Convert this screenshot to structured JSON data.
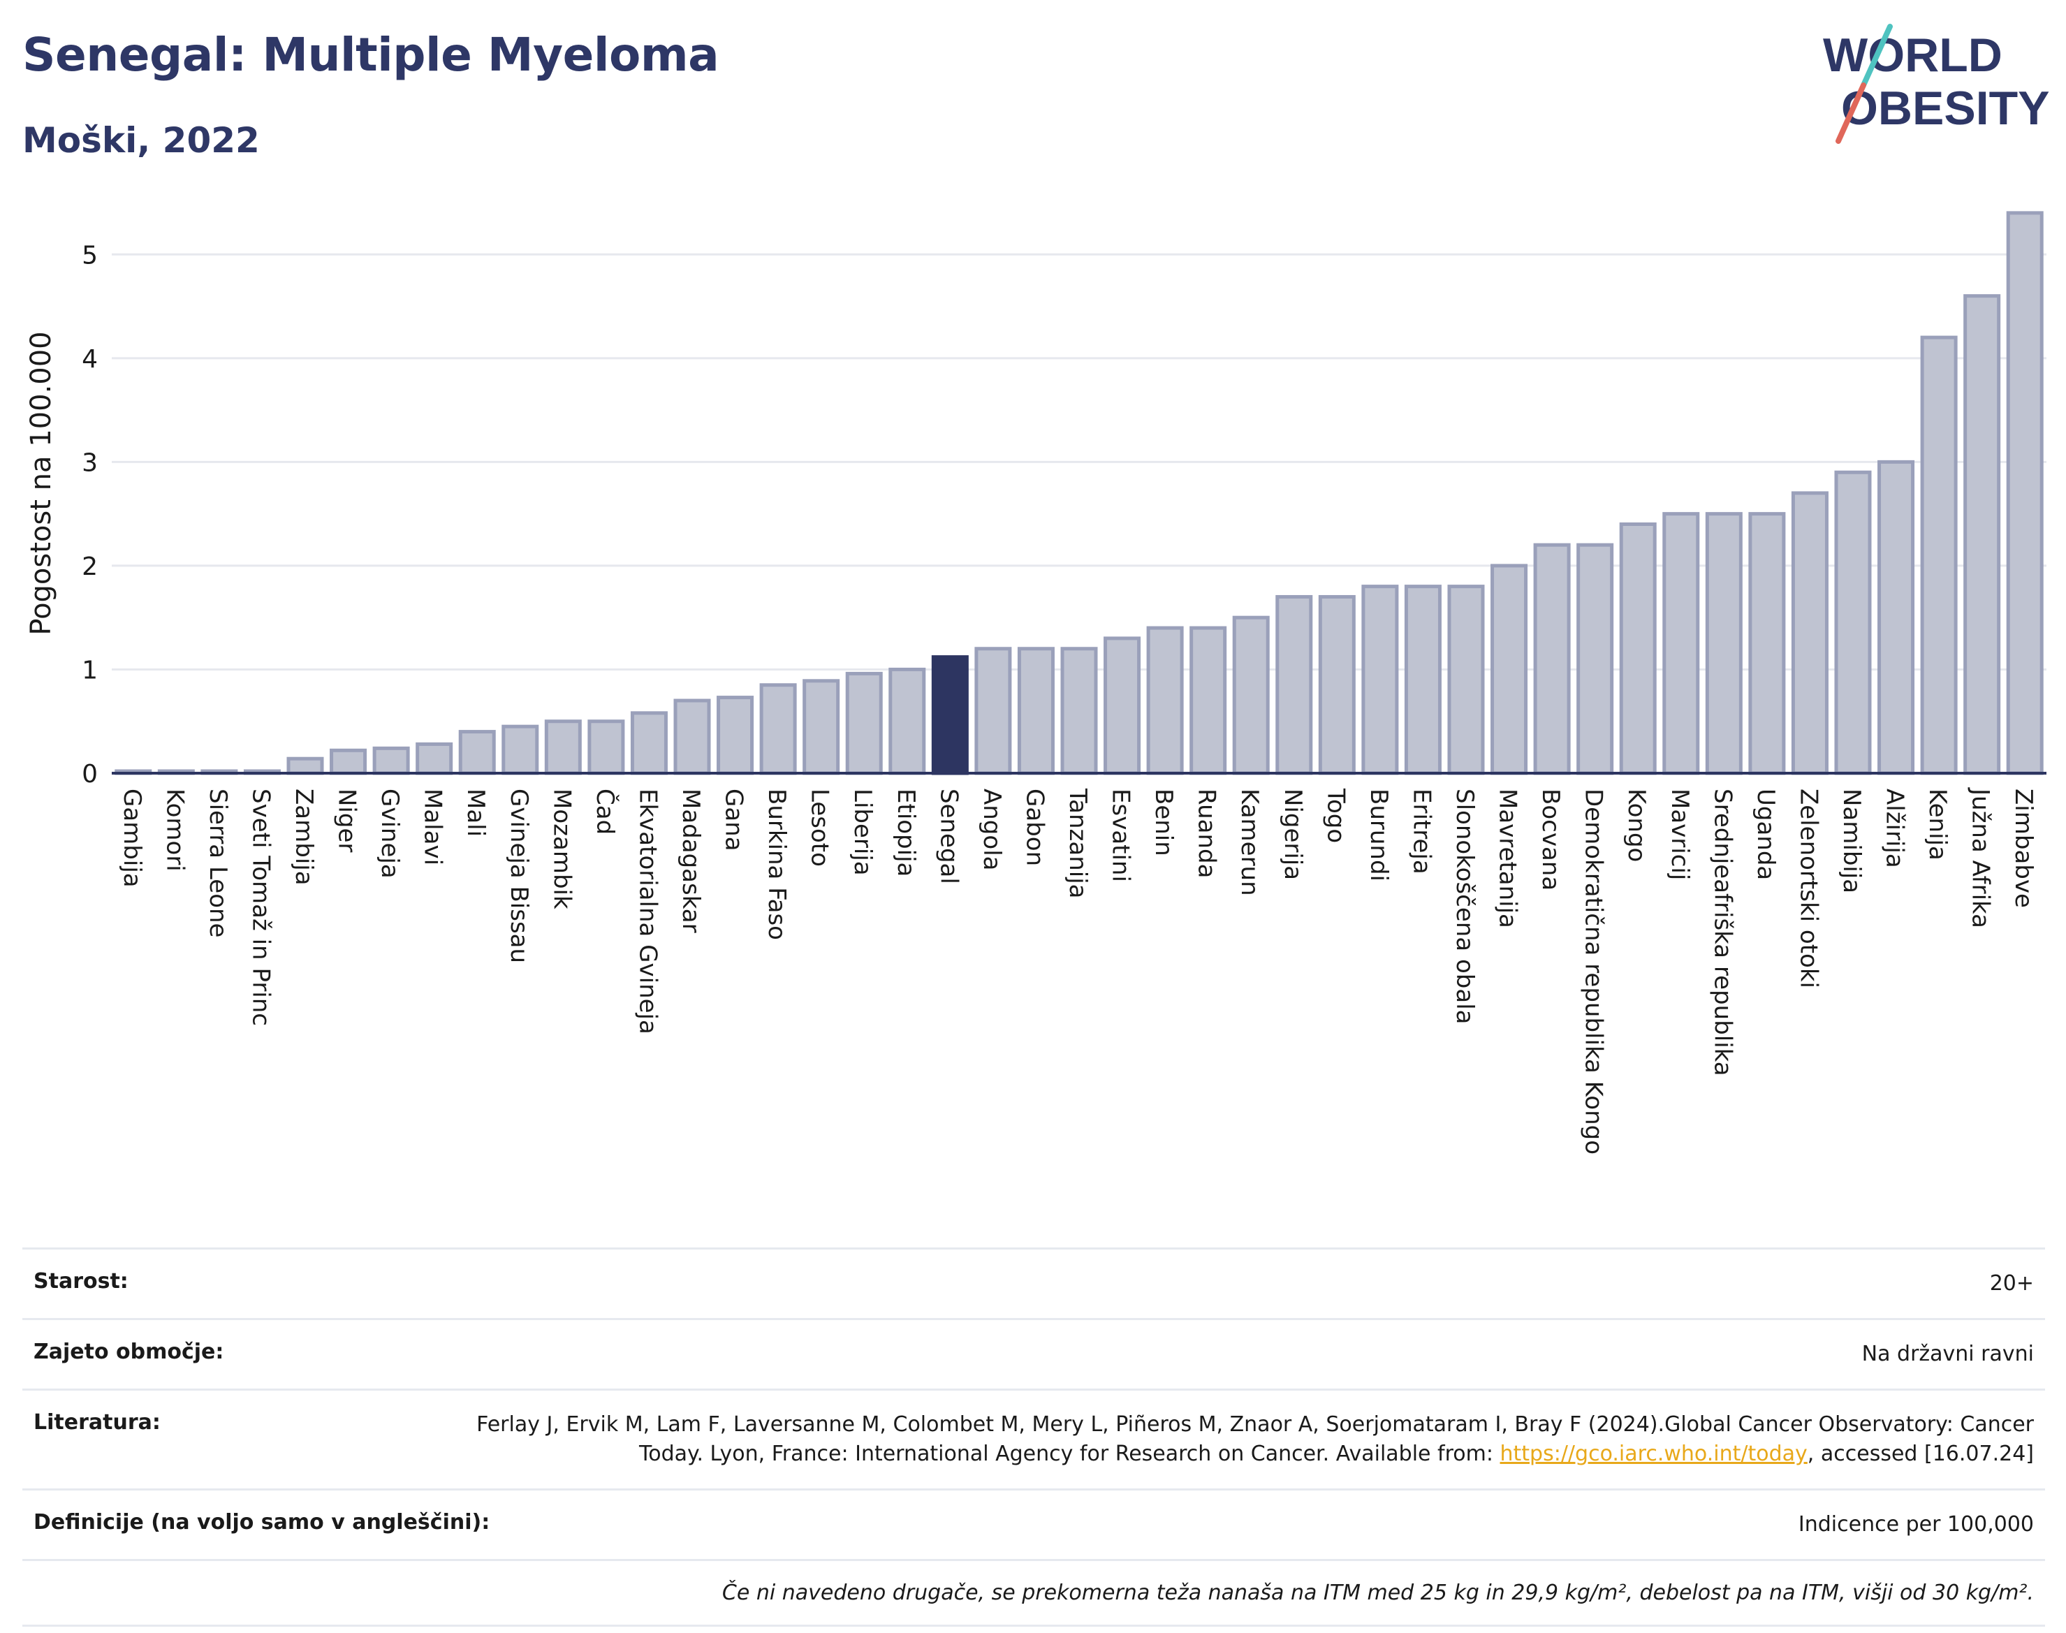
{
  "header": {
    "title": "Senegal: Multiple Myeloma",
    "subtitle": "Moški, 2022"
  },
  "logo": {
    "line1": "W",
    "line1_rest": "RLD",
    "line2": "BESITY",
    "brand_color": "#2e3766",
    "slash_colors": [
      "#4fc3c0",
      "#e0675a"
    ]
  },
  "chart_data": {
    "type": "bar",
    "ylabel": "Pogostost na 100.000",
    "xlabel": "",
    "ylim": [
      0,
      5.5
    ],
    "yticks": [
      0,
      1,
      2,
      3,
      4,
      5
    ],
    "grid": true,
    "highlight_category": "Senegal",
    "colors": {
      "bar": "#bfc3d1",
      "bar_edge": "#9aa0ba",
      "highlight": "#2d3561",
      "grid": "#e6e8ee",
      "axis": "#2d3561"
    },
    "categories": [
      "Gambija",
      "Komori",
      "Sierra Leone",
      "Sveti Tomaž in Princ",
      "Zambija",
      "Niger",
      "Gvineja",
      "Malavi",
      "Mali",
      "Gvineja Bissau",
      "Mozambik",
      "Čad",
      "Ekvatorialna Gvineja",
      "Madagaskar",
      "Gana",
      "Burkina Faso",
      "Lesoto",
      "Liberija",
      "Etiopija",
      "Senegal",
      "Angola",
      "Gabon",
      "Tanzanija",
      "Esvatini",
      "Benin",
      "Ruanda",
      "Kamerun",
      "Nigerija",
      "Togo",
      "Burundi",
      "Eritreja",
      "Slonokoščena obala",
      "Mavretanija",
      "Bocvana",
      "Demokratična republika Kongo",
      "Kongo",
      "Mavricij",
      "Srednjeafriška republika",
      "Uganda",
      "Zelenortski otoki",
      "Namibija",
      "Alžirija",
      "Kenija",
      "Južna Afrika",
      "Zimbabve"
    ],
    "values": [
      0.02,
      0.02,
      0.02,
      0.02,
      0.14,
      0.22,
      0.24,
      0.28,
      0.4,
      0.45,
      0.5,
      0.5,
      0.58,
      0.7,
      0.73,
      0.85,
      0.89,
      0.96,
      1.0,
      1.12,
      1.2,
      1.2,
      1.2,
      1.3,
      1.4,
      1.4,
      1.5,
      1.7,
      1.7,
      1.8,
      1.8,
      1.8,
      2.0,
      2.2,
      2.2,
      2.4,
      2.5,
      2.5,
      2.5,
      2.7,
      2.9,
      3.0,
      4.2,
      4.6,
      5.4
    ]
  },
  "info": {
    "age_label": "Starost:",
    "age_value": "20+",
    "coverage_label": "Zajeto območje:",
    "coverage_value": "Na državni ravni",
    "reference_label": "Literatura:",
    "reference_text_1": "Ferlay J, Ervik M, Lam F, Laversanne M, Colombet M, Mery L, Piñeros M, Znaor A, Soerjomataram I, Bray F (2024).Global Cancer Observatory: Cancer Today. Lyon, France: International Agency for Research on Cancer. Available from: ",
    "reference_link": "https://gco.iarc.who.int/today",
    "reference_text_2": ", accessed [16.07.24]",
    "definitions_label": "Definicije (na voljo samo v angleščini):",
    "definitions_value": "Indicence per 100,000",
    "footnote": "Če ni navedeno drugače, se prekomerna teža nanaša na ITM med 25 kg in 29,9 kg/m², debelost pa na ITM, višji od 30 kg/m²."
  }
}
